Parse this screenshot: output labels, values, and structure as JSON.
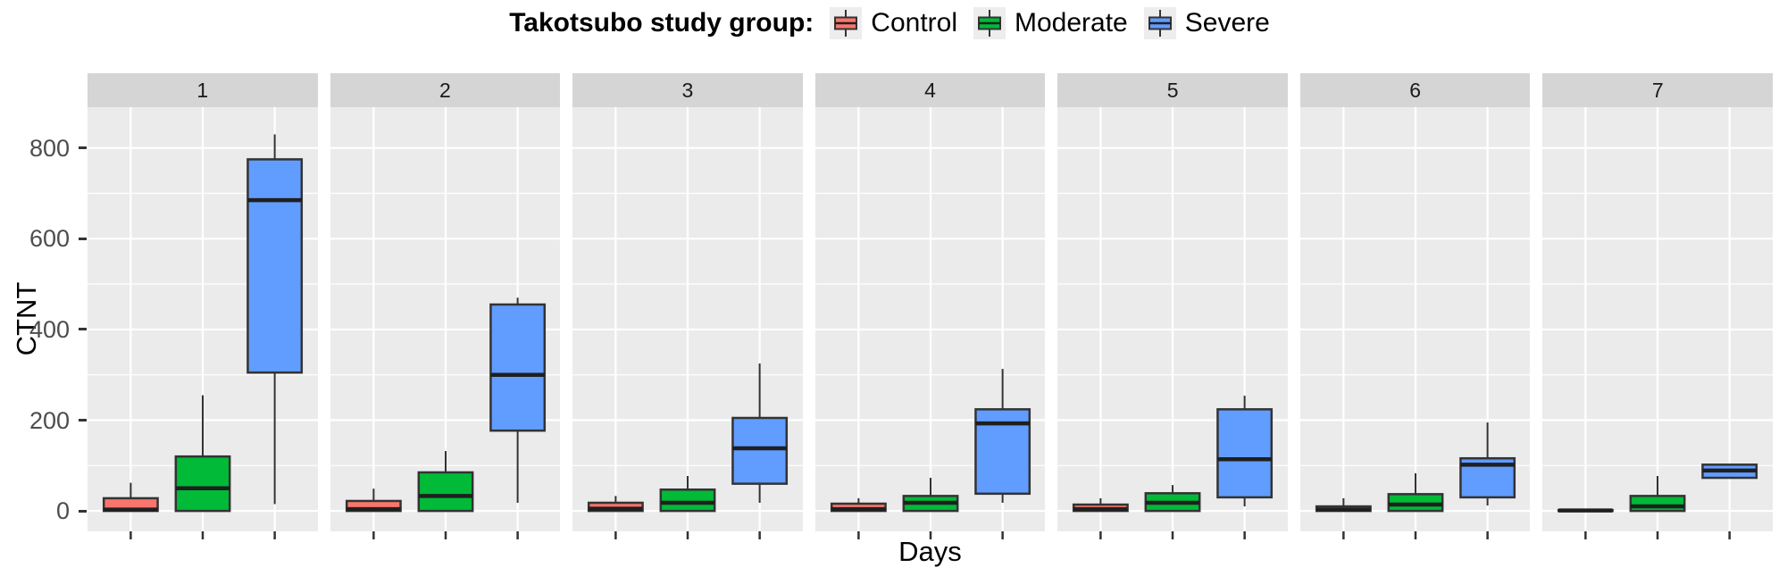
{
  "legend": {
    "title": "Takotsubo study group:",
    "items": [
      {
        "name": "Control",
        "color": "#F8766D"
      },
      {
        "name": "Moderate",
        "color": "#00BA38"
      },
      {
        "name": "Severe",
        "color": "#619CFF"
      }
    ]
  },
  "axes": {
    "y_label": "CTNT",
    "x_label": "Days",
    "y_ticks": [
      0,
      200,
      400,
      600,
      800
    ]
  },
  "style_colors": {
    "panel_background": "#ebebeb",
    "strip_background": "#d5d5d5",
    "gridline": "#ffffff",
    "box_border": "#333333",
    "median_line": "#1f1f1f",
    "axis_text": "#4d4d4d"
  },
  "chart_data": {
    "type": "boxplot",
    "faceting": "by day, panels 1-7",
    "title": "Takotsubo study group:",
    "xlabel": "Days",
    "ylabel": "CTNT",
    "ylim": [
      -45,
      890
    ],
    "grid": true,
    "legend_position": "top",
    "groups": [
      "Control",
      "Moderate",
      "Severe"
    ],
    "group_colors": [
      "#F8766D",
      "#00BA38",
      "#619CFF"
    ],
    "facets": [
      {
        "label": "1",
        "boxes": [
          {
            "group": "Control",
            "min": 0,
            "q1": 0,
            "median": 3,
            "q3": 28,
            "max": 62
          },
          {
            "group": "Moderate",
            "min": 0,
            "q1": 0,
            "median": 50,
            "q3": 120,
            "max": 255
          },
          {
            "group": "Severe",
            "min": 15,
            "q1": 305,
            "median": 685,
            "q3": 775,
            "max": 830
          }
        ]
      },
      {
        "label": "2",
        "boxes": [
          {
            "group": "Control",
            "min": 0,
            "q1": 0,
            "median": 4,
            "q3": 22,
            "max": 49
          },
          {
            "group": "Moderate",
            "min": 0,
            "q1": 0,
            "median": 33,
            "q3": 85,
            "max": 132
          },
          {
            "group": "Severe",
            "min": 18,
            "q1": 177,
            "median": 300,
            "q3": 455,
            "max": 470
          }
        ]
      },
      {
        "label": "3",
        "boxes": [
          {
            "group": "Control",
            "min": 0,
            "q1": 0,
            "median": 5,
            "q3": 18,
            "max": 33
          },
          {
            "group": "Moderate",
            "min": 0,
            "q1": 0,
            "median": 18,
            "q3": 47,
            "max": 77
          },
          {
            "group": "Severe",
            "min": 18,
            "q1": 60,
            "median": 138,
            "q3": 205,
            "max": 325
          }
        ]
      },
      {
        "label": "4",
        "boxes": [
          {
            "group": "Control",
            "min": 0,
            "q1": 0,
            "median": 4,
            "q3": 16,
            "max": 28
          },
          {
            "group": "Moderate",
            "min": 0,
            "q1": 0,
            "median": 18,
            "q3": 33,
            "max": 73
          },
          {
            "group": "Severe",
            "min": 18,
            "q1": 38,
            "median": 193,
            "q3": 224,
            "max": 313
          }
        ]
      },
      {
        "label": "5",
        "boxes": [
          {
            "group": "Control",
            "min": 0,
            "q1": 0,
            "median": 4,
            "q3": 14,
            "max": 28
          },
          {
            "group": "Moderate",
            "min": 0,
            "q1": 0,
            "median": 18,
            "q3": 39,
            "max": 57
          },
          {
            "group": "Severe",
            "min": 10,
            "q1": 30,
            "median": 114,
            "q3": 224,
            "max": 254
          }
        ]
      },
      {
        "label": "6",
        "boxes": [
          {
            "group": "Control",
            "min": 0,
            "q1": 0,
            "median": 3,
            "q3": 10,
            "max": 28
          },
          {
            "group": "Moderate",
            "min": 0,
            "q1": 0,
            "median": 14,
            "q3": 37,
            "max": 83
          },
          {
            "group": "Severe",
            "min": 12,
            "q1": 30,
            "median": 102,
            "q3": 116,
            "max": 195
          }
        ]
      },
      {
        "label": "7",
        "boxes": [
          {
            "group": "Control",
            "min": 0,
            "q1": 0,
            "median": 1,
            "q3": 2,
            "max": 2
          },
          {
            "group": "Moderate",
            "min": 0,
            "q1": 0,
            "median": 10,
            "q3": 33,
            "max": 77
          },
          {
            "group": "Severe",
            "min": 73,
            "q1": 73,
            "median": 89,
            "q3": 102,
            "max": 102
          }
        ]
      }
    ]
  }
}
